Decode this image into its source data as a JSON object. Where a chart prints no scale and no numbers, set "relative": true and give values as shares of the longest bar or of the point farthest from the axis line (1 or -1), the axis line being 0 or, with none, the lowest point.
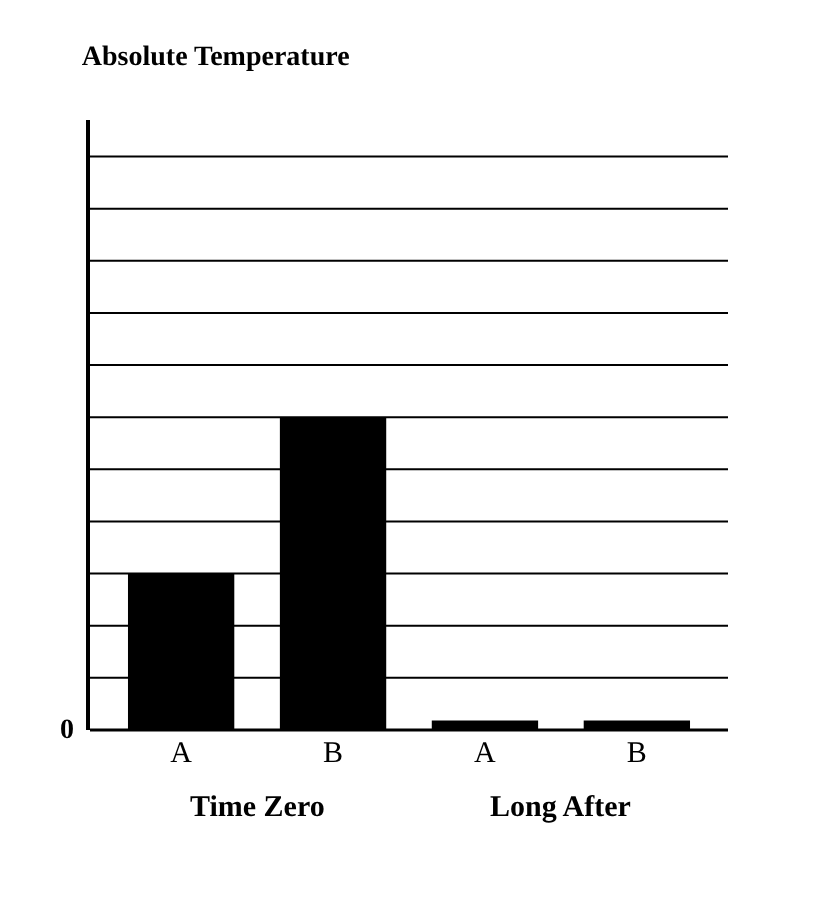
{
  "chart_data": {
    "type": "bar",
    "title": "Absolute Temperature",
    "relative": true,
    "categories": [
      "A",
      "B",
      "A",
      "B"
    ],
    "values": [
      0.5,
      1,
      0.03,
      0.03
    ],
    "color": "#000000",
    "grid": "y",
    "annotations": [
      "0",
      "Time Zero",
      "Long After"
    ]
  }
}
